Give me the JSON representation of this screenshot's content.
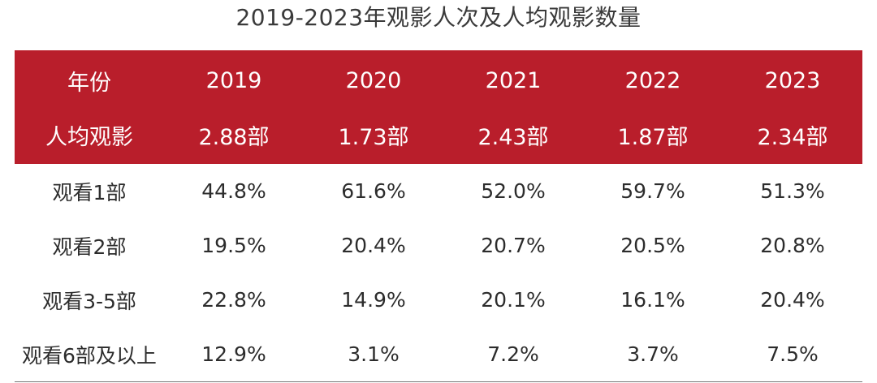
{
  "title": "2019-2023年观影人次及人均观影数量",
  "chart_data": {
    "type": "table",
    "title": "2019-2023年观影人次及人均观影数量",
    "header": {
      "label": "年份",
      "years": [
        "2019",
        "2020",
        "2021",
        "2022",
        "2023"
      ]
    },
    "per_capita": {
      "label": "人均观影",
      "values": [
        "2.88部",
        "1.73部",
        "2.43部",
        "1.87部",
        "2.34部"
      ]
    },
    "rows": [
      {
        "label": "观看1部",
        "values": [
          "44.8%",
          "61.6%",
          "52.0%",
          "59.7%",
          "51.3%"
        ]
      },
      {
        "label": "观看2部",
        "values": [
          "19.5%",
          "20.4%",
          "20.7%",
          "20.5%",
          "20.8%"
        ]
      },
      {
        "label": "观看3-5部",
        "values": [
          "22.8%",
          "14.9%",
          "20.1%",
          "16.1%",
          "20.4%"
        ]
      },
      {
        "label": "观看6部及以上",
        "values": [
          "12.9%",
          "3.1%",
          "7.2%",
          "3.7%",
          "7.5%"
        ]
      }
    ]
  },
  "colors": {
    "header_background": "#b91e2b",
    "header_text": "#ffffff",
    "body_text": "#2c2c2c"
  }
}
